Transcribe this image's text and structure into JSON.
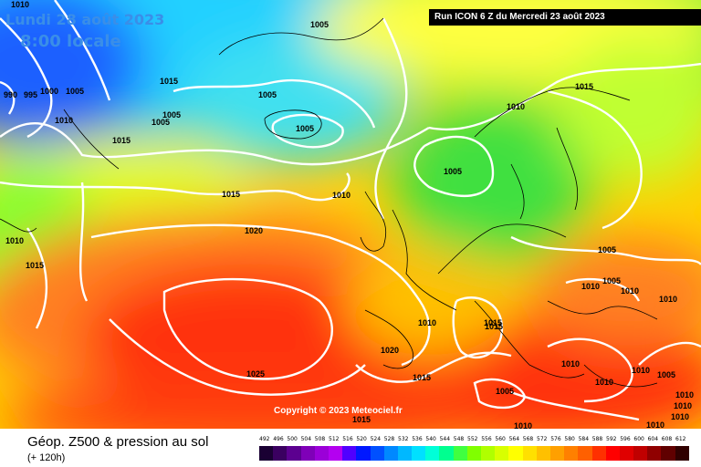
{
  "header": {
    "date": "Lundi 28 août 2023",
    "time": "8:00 locale",
    "run": "Run ICON 6 Z du Mercredi 23 août 2023"
  },
  "copyright": "Copyright © 2023 Meteociel.fr",
  "footer": {
    "title": "Géop. Z500 & pression au sol",
    "subtitle": "(+ 120h)"
  },
  "scale": {
    "values": [
      "492",
      "496",
      "500",
      "504",
      "508",
      "512",
      "516",
      "520",
      "524",
      "528",
      "532",
      "536",
      "540",
      "544",
      "548",
      "552",
      "556",
      "560",
      "564",
      "568",
      "572",
      "576",
      "580",
      "584",
      "588",
      "592",
      "596",
      "600",
      "604",
      "608",
      "612"
    ],
    "colors": [
      "#1a0033",
      "#3a0060",
      "#5c0090",
      "#7f00b8",
      "#9b00d8",
      "#b400f0",
      "#5000ff",
      "#0018ff",
      "#0050ff",
      "#0088ff",
      "#00b8ff",
      "#00e0ff",
      "#00ffd8",
      "#00ff90",
      "#40ff40",
      "#80ff00",
      "#b0ff00",
      "#d8ff00",
      "#ffff00",
      "#ffe000",
      "#ffc000",
      "#ffa000",
      "#ff8000",
      "#ff6000",
      "#ff3000",
      "#ff0000",
      "#e00000",
      "#c00000",
      "#900000",
      "#600000",
      "#300000"
    ]
  },
  "isobars": [
    "1010",
    "990",
    "995",
    "1000",
    "1005",
    "1005",
    "1010",
    "1015",
    "1015",
    "1005",
    "1005",
    "1005",
    "1005",
    "1015",
    "1010",
    "1010",
    "1015",
    "1020",
    "1005",
    "1010",
    "1015",
    "1010",
    "1015",
    "1005",
    "1005",
    "1010",
    "1010",
    "1010",
    "1010",
    "1025",
    "1020",
    "1015",
    "1015",
    "1005",
    "1015",
    "1010",
    "1010",
    "1005",
    "1010",
    "1010",
    "1010",
    "1010",
    "1010"
  ]
}
